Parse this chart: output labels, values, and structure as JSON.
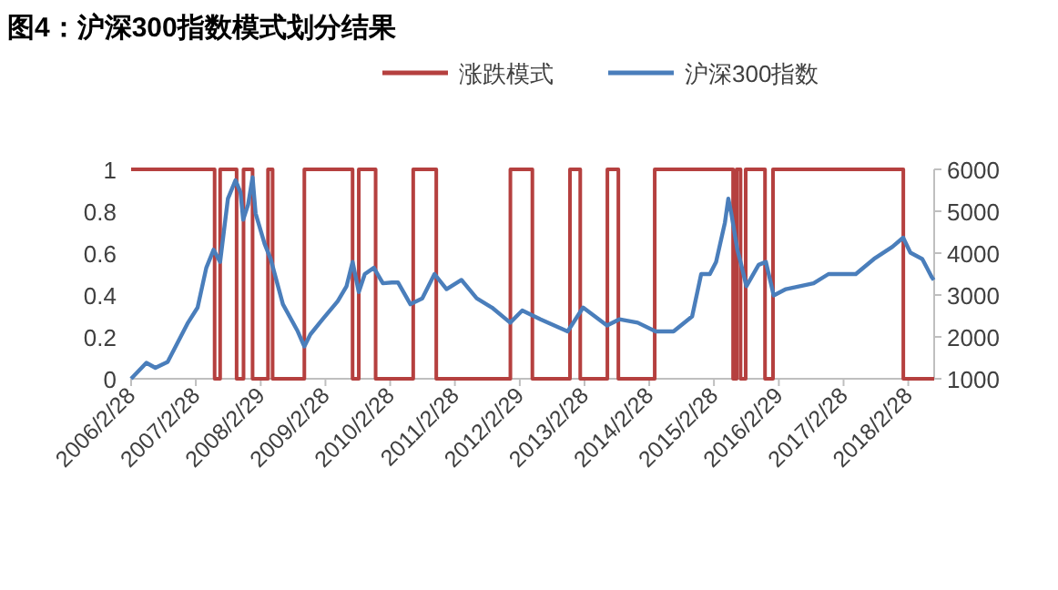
{
  "chart_data": {
    "type": "line",
    "title": "图4：沪深300指数模式划分结果",
    "legend": "top",
    "xlim": [
      "2006-02-28",
      "2018-07-24"
    ],
    "xticks": [
      {
        "value": "2006-02-28",
        "label": "2006/2/28"
      },
      {
        "value": "2007-02-28",
        "label": "2007/2/28"
      },
      {
        "value": "2008-02-29",
        "label": "2008/2/29"
      },
      {
        "value": "2009-02-28",
        "label": "2009/2/28"
      },
      {
        "value": "2010-02-28",
        "label": "2010/2/28"
      },
      {
        "value": "2011-02-28",
        "label": "2011/2/28"
      },
      {
        "value": "2012-02-29",
        "label": "2012/2/29"
      },
      {
        "value": "2013-02-28",
        "label": "2013/2/28"
      },
      {
        "value": "2014-02-28",
        "label": "2014/2/28"
      },
      {
        "value": "2015-02-28",
        "label": "2015/2/28"
      },
      {
        "value": "2016-02-29",
        "label": "2016/2/29"
      },
      {
        "value": "2017-02-28",
        "label": "2017/2/28"
      },
      {
        "value": "2018-02-28",
        "label": "2018/2/28"
      }
    ],
    "ylim": [
      0,
      1
    ],
    "yticks": [
      0,
      0.2,
      0.4,
      0.6,
      0.8,
      1
    ],
    "y2lim": [
      1000,
      6000
    ],
    "y2ticks": [
      1000,
      2000,
      3000,
      4000,
      5000,
      6000
    ],
    "series": [
      {
        "name": "涨跌模式",
        "type": "step",
        "axis": "y",
        "color": "#b5403f",
        "x": [
          "2006-02-28",
          "2007-06-14",
          "2007-07-15",
          "2007-10-16",
          "2007-11-24",
          "2008-01-14",
          "2008-04-10",
          "2008-05-06",
          "2008-11-01",
          "2009-07-31",
          "2009-09-04",
          "2009-12-08",
          "2010-07-08",
          "2010-11-15",
          "2012-01-07",
          "2012-05-10",
          "2012-12-08",
          "2013-02-04",
          "2013-07-07",
          "2013-09-07",
          "2014-03-31",
          "2015-06-16",
          "2015-07-06",
          "2015-07-28",
          "2015-08-26",
          "2015-12-13",
          "2016-01-27",
          "2018-01-31",
          "2018-07-24"
        ],
        "values": [
          1,
          0,
          1,
          0,
          1,
          0,
          1,
          0,
          1,
          0,
          1,
          0,
          1,
          0,
          1,
          0,
          1,
          0,
          1,
          0,
          1,
          0,
          1,
          0,
          1,
          0,
          1,
          0,
          0
        ]
      },
      {
        "name": "沪深300指数",
        "type": "line",
        "axis": "y2",
        "color": "#4a7ebb",
        "x": [
          "2006-02-28",
          "2006-05-25",
          "2006-07-15",
          "2006-09-22",
          "2007-01-15",
          "2007-03-10",
          "2007-04-28",
          "2007-06-08",
          "2007-07-15",
          "2007-08-28",
          "2007-10-10",
          "2007-11-07",
          "2007-11-22",
          "2007-12-20",
          "2008-01-14",
          "2008-01-31",
          "2008-03-22",
          "2008-04-25",
          "2008-07-03",
          "2008-09-25",
          "2008-11-01",
          "2008-12-05",
          "2009-02-12",
          "2009-05-08",
          "2009-06-27",
          "2009-07-31",
          "2009-09-04",
          "2009-10-08",
          "2009-11-28",
          "2010-01-18",
          "2010-03-10",
          "2010-04-13",
          "2010-06-22",
          "2010-08-28",
          "2010-11-05",
          "2011-01-12",
          "2011-04-06",
          "2011-07-01",
          "2011-09-25",
          "2012-01-06",
          "2012-03-14",
          "2012-06-25",
          "2012-11-25",
          "2013-02-20",
          "2013-07-05",
          "2013-09-12",
          "2013-12-25",
          "2014-04-05",
          "2014-07-15",
          "2014-10-28",
          "2014-12-18",
          "2015-02-05",
          "2015-03-12",
          "2015-05-01",
          "2015-05-20",
          "2015-06-06",
          "2015-07-10",
          "2015-07-28",
          "2015-08-30",
          "2015-11-07",
          "2015-12-18",
          "2016-01-31",
          "2016-04-09",
          "2016-09-12",
          "2016-12-05",
          "2017-05-08",
          "2017-08-18",
          "2017-11-30",
          "2018-01-30",
          "2018-03-12",
          "2018-05-18",
          "2018-07-10",
          "2018-07-22"
        ],
        "values": [
          1000,
          1380,
          1260,
          1400,
          2340,
          2700,
          3650,
          4080,
          3790,
          5300,
          5740,
          5450,
          4800,
          5160,
          5810,
          4950,
          4220,
          3860,
          2780,
          2130,
          1770,
          2060,
          2420,
          2850,
          3210,
          3790,
          3070,
          3500,
          3650,
          3280,
          3300,
          3300,
          2780,
          2920,
          3500,
          3140,
          3360,
          2920,
          2700,
          2340,
          2630,
          2420,
          2130,
          2700,
          2270,
          2420,
          2340,
          2130,
          2130,
          2490,
          3500,
          3500,
          3790,
          4730,
          5300,
          4950,
          4080,
          3790,
          3210,
          3720,
          3790,
          2990,
          3140,
          3280,
          3500,
          3500,
          3860,
          4150,
          4370,
          4010,
          3860,
          3430,
          3360
        ]
      }
    ]
  }
}
